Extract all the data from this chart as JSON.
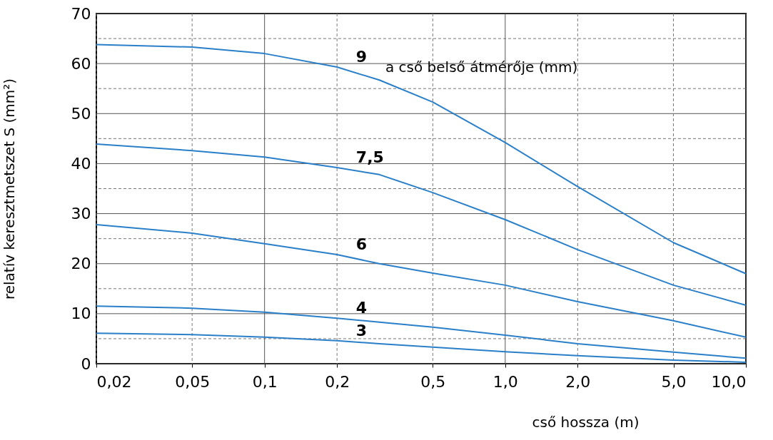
{
  "chart_data": {
    "type": "line",
    "xlabel": "cső hossza (m)",
    "ylabel": "relatív keresztmetszet S (mm²)",
    "annotations": [
      "a cső belső átmérője (mm)"
    ],
    "x": [
      0.02,
      0.05,
      0.1,
      0.2,
      0.3,
      0.5,
      1,
      2,
      5,
      10
    ],
    "series": [
      {
        "name": "9",
        "color": "#2a7fc9",
        "values": [
          63.8,
          63.3,
          62,
          59.3,
          56.7,
          52.3,
          44.2,
          35.4,
          24.2,
          18.0
        ]
      },
      {
        "name": "7,5",
        "color": "#2a7fc9",
        "values": [
          43.9,
          42.6,
          41.3,
          39.2,
          37.8,
          34.2,
          28.8,
          22.8,
          15.7,
          11.7
        ]
      },
      {
        "name": "6",
        "color": "#2a7fc9",
        "values": [
          27.8,
          26.1,
          24.0,
          21.8,
          20.0,
          18.1,
          15.7,
          12.4,
          8.6,
          5.3
        ]
      },
      {
        "name": "4",
        "color": "#2a7fc9",
        "values": [
          11.5,
          11.1,
          10.3,
          9.1,
          8.3,
          7.3,
          5.7,
          4.0,
          2.3,
          1.1
        ]
      },
      {
        "name": "3",
        "color": "#2a7fc9",
        "values": [
          6.1,
          5.8,
          5.3,
          4.6,
          4.0,
          3.3,
          2.4,
          1.6,
          0.7,
          0.3
        ]
      }
    ],
    "log": "x",
    "xlim": [
      0.02,
      10
    ],
    "ylim": [
      0,
      70
    ],
    "xticks": [
      {
        "value": 0.02,
        "label": "0,02"
      },
      {
        "value": 0.05,
        "label": "0,05"
      },
      {
        "value": 0.1,
        "label": "0,1"
      },
      {
        "value": 0.2,
        "label": "0,2"
      },
      {
        "value": 0.5,
        "label": "0,5"
      },
      {
        "value": 1,
        "label": "1,0"
      },
      {
        "value": 2,
        "label": "2,0"
      },
      {
        "value": 5,
        "label": "5,0"
      },
      {
        "value": 10,
        "label": "10,0"
      }
    ],
    "yticks": [
      0,
      {
        "value": 5,
        "label": null
      },
      10,
      {
        "value": 15,
        "label": null
      },
      20,
      {
        "value": 25,
        "label": null
      },
      30,
      {
        "value": 35,
        "label": null
      },
      40,
      {
        "value": 45,
        "label": null
      },
      50,
      {
        "value": 55,
        "label": null
      },
      60,
      {
        "value": 65,
        "label": null
      },
      70
    ],
    "grid": true,
    "marker": "none",
    "line_style": "solid"
  }
}
